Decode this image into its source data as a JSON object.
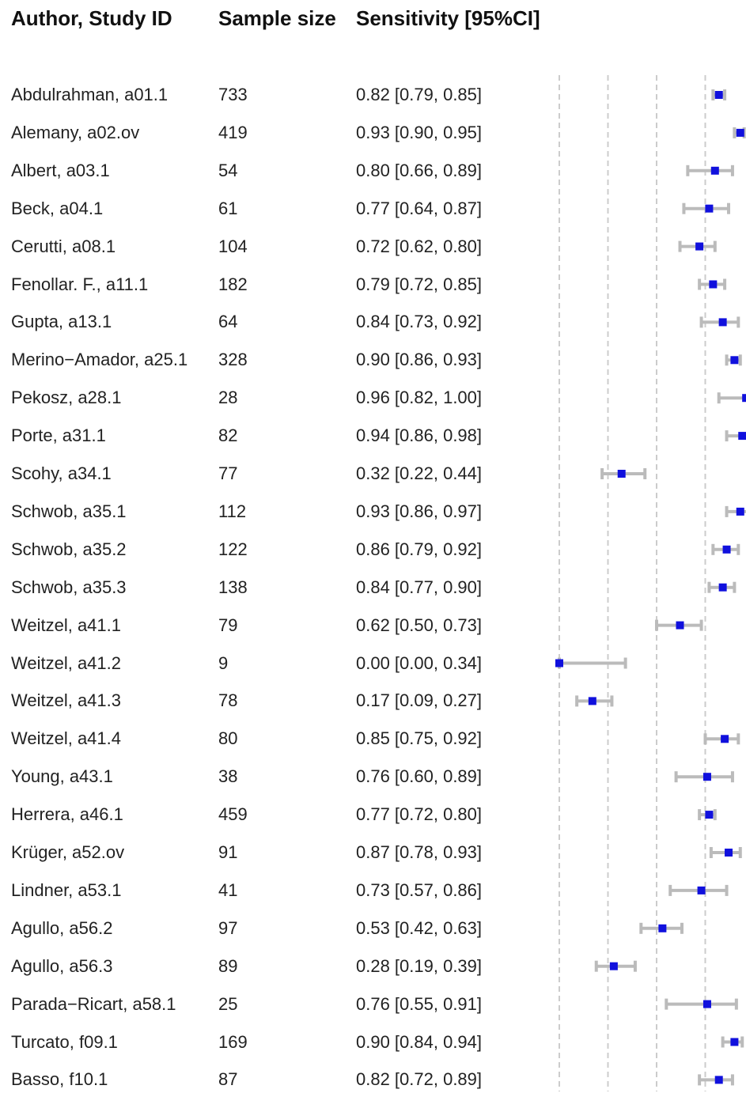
{
  "columns": {
    "author": "Author, Study ID",
    "sample_size": "Sample size",
    "sensitivity": "Sensitivity [95%CI]"
  },
  "chart_data": {
    "type": "forest",
    "x_gridlines": [
      0.0,
      0.25,
      0.5,
      0.75
    ],
    "grid": "dashed vertical lines",
    "colors": {
      "point": "#1010dd",
      "ci": "#bbbbbb",
      "grid": "#cccccc"
    },
    "rows": [
      {
        "author": "Abdulrahman, a01.1",
        "n": "733",
        "label": "0.82 [0.79, 0.85]",
        "est": 0.82,
        "lo": 0.79,
        "hi": 0.85
      },
      {
        "author": "Alemany, a02.ov",
        "n": "419",
        "label": "0.93 [0.90, 0.95]",
        "est": 0.93,
        "lo": 0.9,
        "hi": 0.95
      },
      {
        "author": "Albert, a03.1",
        "n": "54",
        "label": "0.80 [0.66, 0.89]",
        "est": 0.8,
        "lo": 0.66,
        "hi": 0.89
      },
      {
        "author": "Beck, a04.1",
        "n": "61",
        "label": "0.77 [0.64, 0.87]",
        "est": 0.77,
        "lo": 0.64,
        "hi": 0.87
      },
      {
        "author": "Cerutti, a08.1",
        "n": "104",
        "label": "0.72 [0.62, 0.80]",
        "est": 0.72,
        "lo": 0.62,
        "hi": 0.8
      },
      {
        "author": "Fenollar. F., a11.1",
        "n": "182",
        "label": "0.79 [0.72, 0.85]",
        "est": 0.79,
        "lo": 0.72,
        "hi": 0.85
      },
      {
        "author": "Gupta, a13.1",
        "n": "64",
        "label": "0.84 [0.73, 0.92]",
        "est": 0.84,
        "lo": 0.73,
        "hi": 0.92
      },
      {
        "author": "Merino−Amador, a25.1",
        "n": "328",
        "label": "0.90 [0.86, 0.93]",
        "est": 0.9,
        "lo": 0.86,
        "hi": 0.93
      },
      {
        "author": "Pekosz, a28.1",
        "n": "28",
        "label": "0.96 [0.82, 1.00]",
        "est": 0.96,
        "lo": 0.82,
        "hi": 1.0
      },
      {
        "author": "Porte, a31.1",
        "n": "82",
        "label": "0.94 [0.86, 0.98]",
        "est": 0.94,
        "lo": 0.86,
        "hi": 0.98
      },
      {
        "author": "Scohy, a34.1",
        "n": "77",
        "label": "0.32 [0.22, 0.44]",
        "est": 0.32,
        "lo": 0.22,
        "hi": 0.44
      },
      {
        "author": "Schwob, a35.1",
        "n": "112",
        "label": "0.93 [0.86, 0.97]",
        "est": 0.93,
        "lo": 0.86,
        "hi": 0.97
      },
      {
        "author": "Schwob, a35.2",
        "n": "122",
        "label": "0.86 [0.79, 0.92]",
        "est": 0.86,
        "lo": 0.79,
        "hi": 0.92
      },
      {
        "author": "Schwob, a35.3",
        "n": "138",
        "label": "0.84 [0.77, 0.90]",
        "est": 0.84,
        "lo": 0.77,
        "hi": 0.9
      },
      {
        "author": "Weitzel, a41.1",
        "n": "79",
        "label": "0.62 [0.50, 0.73]",
        "est": 0.62,
        "lo": 0.5,
        "hi": 0.73
      },
      {
        "author": "Weitzel, a41.2",
        "n": "9",
        "label": "0.00 [0.00, 0.34]",
        "est": 0.0,
        "lo": 0.0,
        "hi": 0.34
      },
      {
        "author": "Weitzel, a41.3",
        "n": "78",
        "label": "0.17 [0.09, 0.27]",
        "est": 0.17,
        "lo": 0.09,
        "hi": 0.27
      },
      {
        "author": "Weitzel, a41.4",
        "n": "80",
        "label": "0.85 [0.75, 0.92]",
        "est": 0.85,
        "lo": 0.75,
        "hi": 0.92
      },
      {
        "author": "Young, a43.1",
        "n": "38",
        "label": "0.76 [0.60, 0.89]",
        "est": 0.76,
        "lo": 0.6,
        "hi": 0.89
      },
      {
        "author": "Herrera, a46.1",
        "n": "459",
        "label": "0.77 [0.72, 0.80]",
        "est": 0.77,
        "lo": 0.72,
        "hi": 0.8
      },
      {
        "author": "Krüger, a52.ov",
        "n": "91",
        "label": "0.87 [0.78, 0.93]",
        "est": 0.87,
        "lo": 0.78,
        "hi": 0.93
      },
      {
        "author": "Lindner, a53.1",
        "n": "41",
        "label": "0.73 [0.57, 0.86]",
        "est": 0.73,
        "lo": 0.57,
        "hi": 0.86
      },
      {
        "author": "Agullo, a56.2",
        "n": "97",
        "label": "0.53 [0.42, 0.63]",
        "est": 0.53,
        "lo": 0.42,
        "hi": 0.63
      },
      {
        "author": "Agullo, a56.3",
        "n": "89",
        "label": "0.28 [0.19, 0.39]",
        "est": 0.28,
        "lo": 0.19,
        "hi": 0.39
      },
      {
        "author": "Parada−Ricart, a58.1",
        "n": "25",
        "label": "0.76 [0.55, 0.91]",
        "est": 0.76,
        "lo": 0.55,
        "hi": 0.91
      },
      {
        "author": "Turcato, f09.1",
        "n": "169",
        "label": "0.90 [0.84, 0.94]",
        "est": 0.9,
        "lo": 0.84,
        "hi": 0.94
      },
      {
        "author": "Basso, f10.1",
        "n": "87",
        "label": "0.82 [0.72, 0.89]",
        "est": 0.82,
        "lo": 0.72,
        "hi": 0.89
      }
    ]
  }
}
